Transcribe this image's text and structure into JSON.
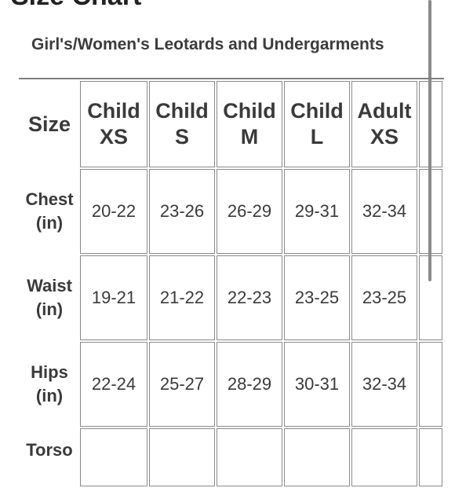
{
  "page_title": "Size Chart",
  "subtitle": "Girl's/Women's Leotards and Undergarments",
  "table": {
    "corner_header": "Size",
    "columns": [
      {
        "line1": "Child",
        "line2": "XS"
      },
      {
        "line1": "Child",
        "line2": "S"
      },
      {
        "line1": "Child",
        "line2": "M"
      },
      {
        "line1": "Child",
        "line2": "L"
      },
      {
        "line1": "Adult",
        "line2": "XS"
      }
    ],
    "rows": [
      {
        "line1": "Chest",
        "line2": "(in)",
        "values": [
          "20-22",
          "23-26",
          "26-29",
          "29-31",
          "32-34"
        ]
      },
      {
        "line1": "Waist",
        "line2": "(in)",
        "values": [
          "19-21",
          "21-22",
          "22-23",
          "23-25",
          "23-25"
        ]
      },
      {
        "line1": "Hips",
        "line2": "(in)",
        "values": [
          "22-24",
          "25-27",
          "28-29",
          "30-31",
          "32-34"
        ]
      },
      {
        "line1": "Torso",
        "line2": "",
        "values": [
          "",
          "",
          "",
          "",
          ""
        ]
      }
    ]
  }
}
